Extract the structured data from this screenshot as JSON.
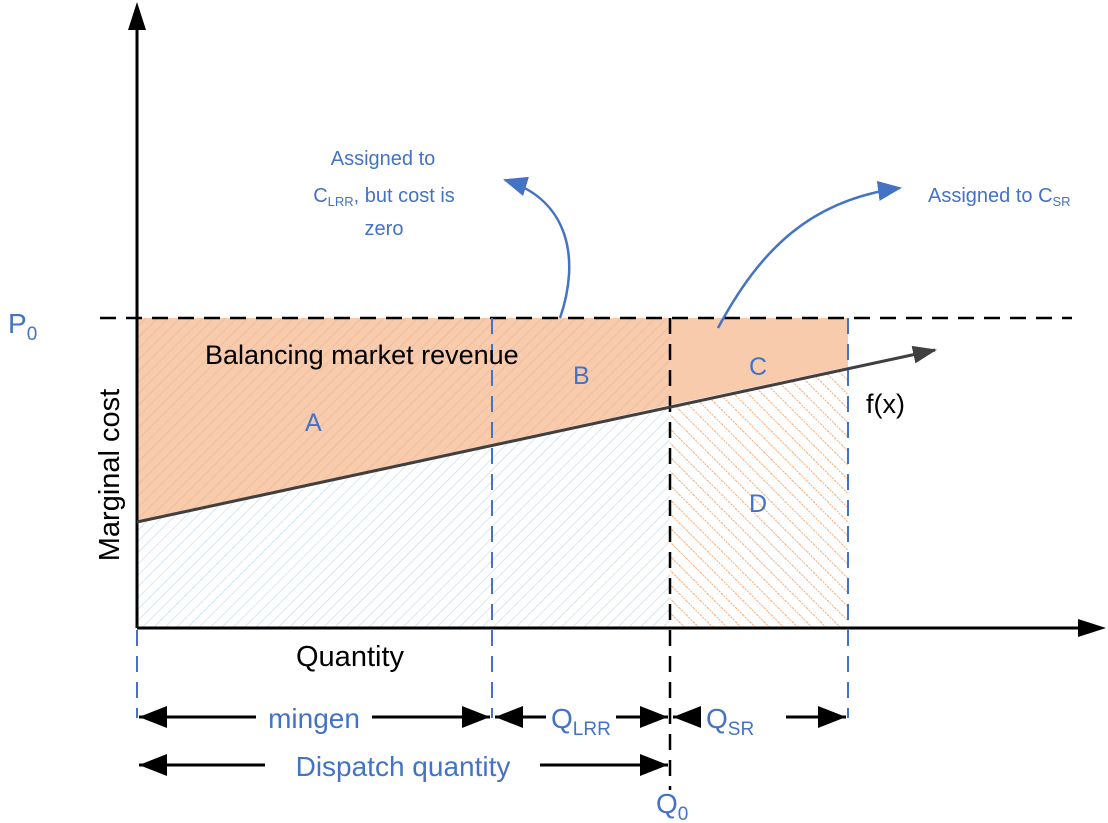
{
  "axes": {
    "y_label": "Marginal cost",
    "x_label": "Quantity",
    "f_label": "f(x)",
    "p_label": {
      "main": "P",
      "sub": "0"
    },
    "q_label": {
      "main": "Q",
      "sub": "0"
    }
  },
  "regions": {
    "balancing_revenue": "Balancing market revenue",
    "a": "A",
    "b": "B",
    "c": "C",
    "d": "D"
  },
  "annotations": {
    "lrr": {
      "line1": "Assigned to",
      "line2_main": "C",
      "line2_sub": "LRR",
      "line2_rest": ", but cost is",
      "line3": "zero"
    },
    "sr": {
      "main": "Assigned to C",
      "sub": "SR"
    }
  },
  "spans": {
    "mingen": "mingen",
    "qlrr": {
      "main": "Q",
      "sub": "LRR"
    },
    "qsr": {
      "main": "Q",
      "sub": "SR"
    },
    "dispatch": "Dispatch quantity"
  },
  "colors": {
    "orange_fill": "#F8CBAD",
    "orange_hatch": "#F4B183",
    "blue_hatch": "#BDD7EE",
    "accent_blue": "#4472C4",
    "axis": "#000000",
    "cost_line": "#404040"
  }
}
